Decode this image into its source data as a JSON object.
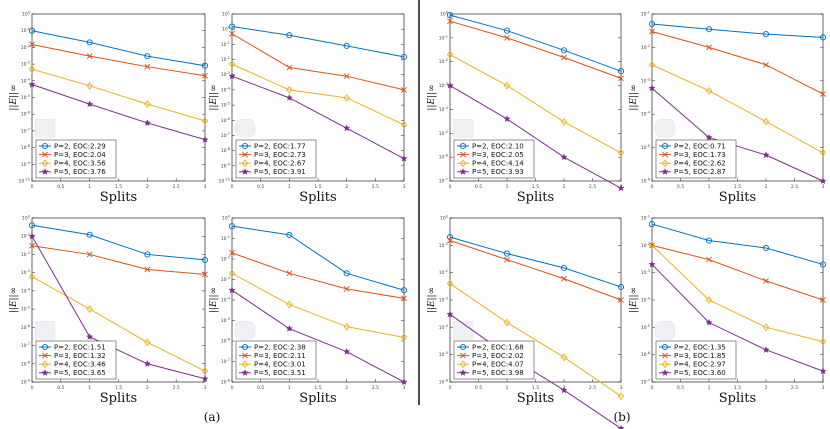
{
  "colors": {
    "P2": "#0072BD",
    "P3": "#D95319",
    "P4": "#EDB120",
    "P5": "#7E2F8E"
  },
  "subcaptions": {
    "a": "(a)",
    "b": "(b)"
  },
  "chart_data": [
    {
      "type": "line",
      "ylabel": "||E||∞",
      "xlabel": "Splits",
      "xlim": [
        0,
        3
      ],
      "ylim_exp": [
        -10,
        0
      ],
      "x": [
        0,
        1,
        2,
        3
      ],
      "series": [
        {
          "name": "P=2, EOC:2.29",
          "marker": "o",
          "values": [
            0.1,
            0.02,
            0.003,
            0.0008
          ]
        },
        {
          "name": "P=3, EOC:2.04",
          "marker": "x",
          "values": [
            0.015,
            0.003,
            0.0007,
            0.0002
          ]
        },
        {
          "name": "P=4, EOC:3.56",
          "marker": "d",
          "values": [
            0.0005,
            5e-05,
            4e-06,
            4e-07
          ]
        },
        {
          "name": "P=5, EOC:3.76",
          "marker": "*",
          "values": [
            6e-05,
            4e-06,
            3e-07,
            3e-08
          ]
        }
      ]
    },
    {
      "type": "line",
      "ylabel": "||E||∞",
      "xlabel": "Splits",
      "xlim": [
        0,
        3
      ],
      "ylim_exp": [
        -10,
        1
      ],
      "x": [
        0,
        1,
        2,
        3
      ],
      "series": [
        {
          "name": "P=2, EOC:1.77",
          "marker": "o",
          "values": [
            1.5,
            0.4,
            0.08,
            0.015
          ]
        },
        {
          "name": "P=3, EOC:2.73",
          "marker": "x",
          "values": [
            0.5,
            0.003,
            0.0008,
            0.0001
          ]
        },
        {
          "name": "P=4, EOC:2.67",
          "marker": "d",
          "values": [
            0.005,
            0.0001,
            3e-05,
            5e-07
          ]
        },
        {
          "name": "P=5, EOC:3.91",
          "marker": "*",
          "values": [
            0.0008,
            3e-05,
            3e-07,
            3e-09
          ]
        }
      ]
    },
    {
      "type": "line",
      "ylabel": "||E||∞",
      "xlabel": "Splits",
      "xlim": [
        0,
        3
      ],
      "ylim_exp": [
        -9,
        0
      ],
      "x": [
        0,
        1,
        2,
        3
      ],
      "series": [
        {
          "name": "P=2, EOC:1.51",
          "marker": "o",
          "values": [
            0.4,
            0.12,
            0.01,
            0.005
          ]
        },
        {
          "name": "P=3, EOC:1.32",
          "marker": "x",
          "values": [
            0.03,
            0.01,
            0.0015,
            0.0008
          ]
        },
        {
          "name": "P=4, EOC:3.46",
          "marker": "d",
          "values": [
            0.0006,
            1e-05,
            1.5e-07,
            4e-09
          ]
        },
        {
          "name": "P=5, EOC:3.65",
          "marker": "*",
          "values": [
            0.1,
            3e-07,
            1e-08,
            1.5e-09
          ]
        }
      ]
    },
    {
      "type": "line",
      "ylabel": "||E||∞",
      "xlabel": "Splits",
      "xlim": [
        0,
        3
      ],
      "ylim_exp": [
        -8,
        0
      ],
      "x": [
        0,
        1,
        2,
        3
      ],
      "series": [
        {
          "name": "P=2, EOC:2.38",
          "marker": "o",
          "values": [
            0.4,
            0.15,
            0.002,
            0.0003
          ]
        },
        {
          "name": "P=3, EOC:2.11",
          "marker": "x",
          "values": [
            0.02,
            0.002,
            0.00035,
            0.00012
          ]
        },
        {
          "name": "P=4, EOC:3.01",
          "marker": "d",
          "values": [
            0.002,
            6e-05,
            5e-06,
            1.5e-06
          ]
        },
        {
          "name": "P=5, EOC:3.51",
          "marker": "*",
          "values": [
            0.0003,
            4e-06,
            3e-07,
            1e-08
          ]
        }
      ]
    },
    {
      "type": "line",
      "ylabel": "||E||∞",
      "xlabel": "Splits",
      "xlim": [
        0,
        3
      ],
      "ylim_exp": [
        -7,
        0
      ],
      "x": [
        0,
        1,
        2,
        3
      ],
      "series": [
        {
          "name": "P=2, EOC:2.10",
          "marker": "o",
          "values": [
            0.9,
            0.2,
            0.03,
            0.004
          ]
        },
        {
          "name": "P=3, EOC:2.05",
          "marker": "x",
          "values": [
            0.5,
            0.1,
            0.015,
            0.002
          ]
        },
        {
          "name": "P=4, EOC:4.14",
          "marker": "d",
          "values": [
            0.02,
            0.001,
            3e-05,
            1.5e-06
          ]
        },
        {
          "name": "P=5, EOC:3.93",
          "marker": "*",
          "values": [
            0.001,
            4e-05,
            1e-06,
            5e-08
          ]
        }
      ]
    },
    {
      "type": "line",
      "ylabel": "||E||∞",
      "xlabel": "Splits",
      "xlim": [
        0,
        3
      ],
      "ylim_exp": [
        -6,
        -1
      ],
      "x": [
        0,
        1,
        2,
        3
      ],
      "series": [
        {
          "name": "P=2, EOC:0.71",
          "marker": "o",
          "values": [
            0.05,
            0.035,
            0.025,
            0.02
          ]
        },
        {
          "name": "P=3, EOC:1.73",
          "marker": "x",
          "values": [
            0.03,
            0.01,
            0.003,
            0.0004
          ]
        },
        {
          "name": "P=4, EOC:2.62",
          "marker": "d",
          "values": [
            0.003,
            0.0005,
            6e-05,
            7e-06
          ]
        },
        {
          "name": "P=5, EOC:2.87",
          "marker": "*",
          "values": [
            0.0006,
            2e-05,
            6e-06,
            1e-06
          ]
        }
      ]
    },
    {
      "type": "line",
      "ylabel": "||E||∞",
      "xlabel": "Splits",
      "xlim": [
        0,
        3
      ],
      "ylim_exp": [
        -6,
        0
      ],
      "x": [
        0,
        1,
        2,
        3
      ],
      "series": [
        {
          "name": "P=2, EOC:1.68",
          "marker": "o",
          "values": [
            0.2,
            0.05,
            0.015,
            0.003
          ]
        },
        {
          "name": "P=3, EOC:2.02",
          "marker": "x",
          "values": [
            0.15,
            0.03,
            0.006,
            0.001
          ]
        },
        {
          "name": "P=4, EOC:4.07",
          "marker": "d",
          "values": [
            0.004,
            0.00015,
            8e-06,
            3e-07
          ]
        },
        {
          "name": "P=5, EOC:3.98",
          "marker": "*",
          "values": [
            0.0003,
            1e-05,
            5e-07,
            2e-08
          ]
        }
      ]
    },
    {
      "type": "line",
      "ylabel": "||E||∞",
      "xlabel": "Splits",
      "xlim": [
        0,
        3
      ],
      "ylim_exp": [
        -7,
        -1
      ],
      "x": [
        0,
        1,
        2,
        3
      ],
      "series": [
        {
          "name": "P=2, EOC:1.35",
          "marker": "o",
          "values": [
            0.06,
            0.015,
            0.008,
            0.002
          ]
        },
        {
          "name": "P=3, EOC:1.85",
          "marker": "x",
          "values": [
            0.01,
            0.003,
            0.0005,
            0.0001
          ]
        },
        {
          "name": "P=4, EOC:2.97",
          "marker": "d",
          "values": [
            0.01,
            0.0001,
            1e-05,
            3e-06
          ]
        },
        {
          "name": "P=5, EOC:3.60",
          "marker": "*",
          "values": [
            0.002,
            1.5e-05,
            1.5e-06,
            2.5e-07
          ]
        }
      ]
    }
  ]
}
